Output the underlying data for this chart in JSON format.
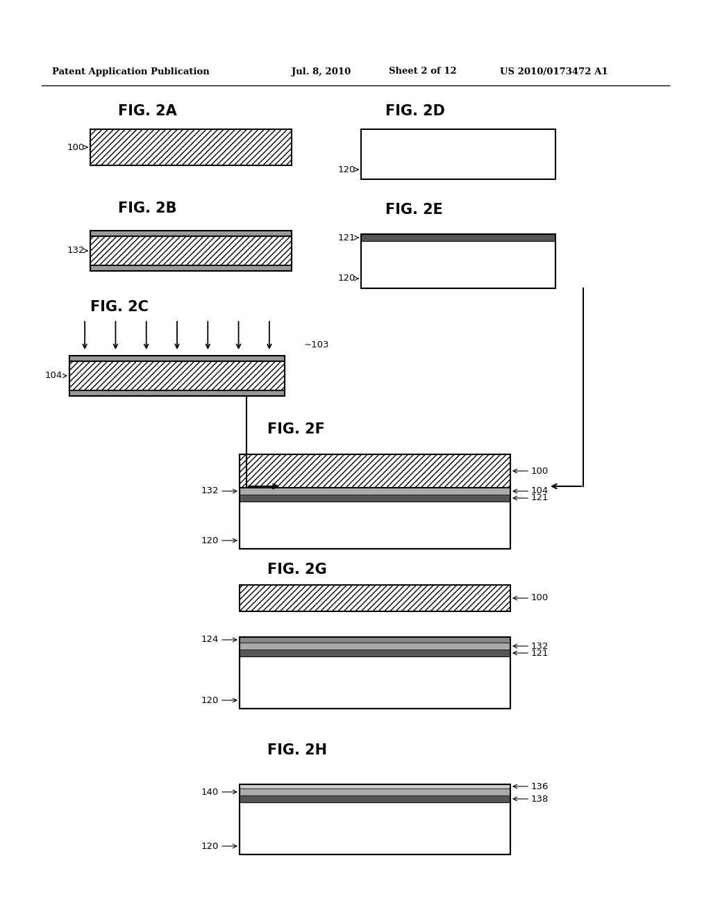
{
  "header_left": "Patent Application Publication",
  "header_mid": "Jul. 8, 2010   Sheet 2 of 12",
  "header_right": "US 2010/0173472 A1",
  "background": "#ffffff"
}
